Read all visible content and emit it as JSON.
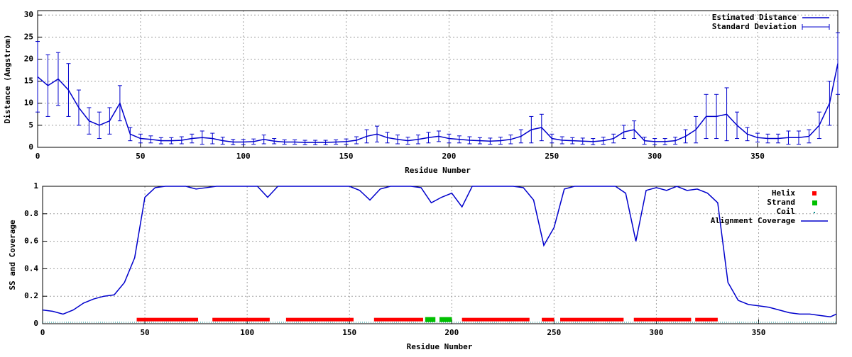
{
  "chart_data": [
    {
      "type": "errorline",
      "ylabel": "Distance (Angstrom)",
      "xlabel": "Residue Number",
      "xlim": [
        0,
        389
      ],
      "ylim": [
        0,
        31
      ],
      "xticks": [
        0,
        50,
        100,
        150,
        200,
        250,
        300,
        350
      ],
      "yticks": [
        0,
        5,
        10,
        15,
        20,
        25,
        30
      ],
      "grid": true,
      "legend": "top-right",
      "color": "#0000cc",
      "legend_labels": [
        "Estimated Distance",
        "Standard Deviation"
      ],
      "x": [
        0,
        5,
        10,
        15,
        20,
        25,
        30,
        35,
        40,
        45,
        50,
        55,
        60,
        65,
        70,
        75,
        80,
        85,
        90,
        95,
        100,
        105,
        110,
        115,
        120,
        125,
        130,
        135,
        140,
        145,
        150,
        155,
        160,
        165,
        170,
        175,
        180,
        185,
        190,
        195,
        200,
        205,
        210,
        215,
        220,
        225,
        230,
        235,
        240,
        245,
        250,
        255,
        260,
        265,
        270,
        275,
        280,
        285,
        290,
        295,
        300,
        305,
        310,
        315,
        320,
        325,
        330,
        335,
        340,
        345,
        350,
        355,
        360,
        365,
        370,
        375,
        380,
        385,
        389
      ],
      "values": [
        16,
        14,
        15.5,
        13,
        9,
        6,
        5,
        6,
        10,
        3,
        2,
        1.8,
        1.5,
        1.5,
        1.6,
        2,
        2.2,
        2,
        1.5,
        1.2,
        1.2,
        1.3,
        1.8,
        1.4,
        1.2,
        1.2,
        1.1,
        1.1,
        1.1,
        1.2,
        1.3,
        1.6,
        2.5,
        3,
        2.2,
        1.8,
        1.5,
        1.8,
        2.2,
        2.5,
        2,
        1.8,
        1.6,
        1.5,
        1.4,
        1.5,
        1.8,
        2.5,
        4,
        4.5,
        2,
        1.6,
        1.5,
        1.4,
        1.3,
        1.5,
        2,
        3.5,
        4,
        1.5,
        1.3,
        1.3,
        1.5,
        2.5,
        4,
        7,
        7,
        7.5,
        5,
        3,
        2.2,
        2,
        2,
        2.2,
        2.2,
        2.5,
        5,
        10,
        19
      ],
      "std": [
        8,
        7,
        6,
        6,
        4,
        3,
        3,
        3,
        4,
        1.5,
        1,
        0.8,
        0.7,
        0.7,
        0.8,
        1,
        1.5,
        1.2,
        0.8,
        0.6,
        0.6,
        0.6,
        1,
        0.6,
        0.5,
        0.5,
        0.5,
        0.5,
        0.5,
        0.5,
        0.6,
        0.8,
        1.5,
        1.8,
        1.2,
        1,
        0.8,
        1,
        1.2,
        1.2,
        1,
        0.8,
        0.8,
        0.7,
        0.7,
        0.8,
        1,
        1.5,
        3,
        3,
        1,
        0.8,
        0.7,
        0.7,
        0.7,
        0.8,
        1,
        1.5,
        2,
        0.8,
        0.7,
        0.7,
        0.8,
        1.5,
        3,
        5,
        5,
        6,
        3,
        1.5,
        1,
        1,
        1,
        1.5,
        1.5,
        1.5,
        3,
        5,
        7
      ]
    },
    {
      "type": "coverage",
      "ylabel": "SS and Coverage",
      "xlabel": "Residue Number",
      "xlim": [
        0,
        388
      ],
      "ylim": [
        0,
        1
      ],
      "xticks": [
        0,
        50,
        100,
        150,
        200,
        250,
        300,
        350
      ],
      "yticks": [
        0,
        {
          "value": 0.2,
          "label": "0.2"
        },
        {
          "value": 0.4,
          "label": "0.4"
        },
        {
          "value": 0.6,
          "label": "0.6"
        },
        {
          "value": 0.8,
          "label": "0.8"
        },
        1
      ],
      "grid": true,
      "legend": "top-right",
      "legend_labels": [
        "Helix",
        "Strand",
        "Coil",
        "Alignment Coverage"
      ],
      "colors": {
        "helix": "#ff0000",
        "strand": "#00c000",
        "coil": "#009090",
        "coverage": "#0000cc"
      },
      "ss_levels": {
        "helix": 0.03,
        "strand": 0.03,
        "coil": 0.01
      },
      "helix_ranges": [
        [
          46,
          76
        ],
        [
          83,
          111
        ],
        [
          119,
          152
        ],
        [
          162,
          186
        ],
        [
          205,
          238
        ],
        [
          244,
          250
        ],
        [
          253,
          284
        ],
        [
          289,
          317
        ],
        [
          319,
          330
        ]
      ],
      "strand_ranges": [
        [
          187,
          192
        ],
        [
          194,
          200
        ]
      ],
      "x": [
        0,
        5,
        10,
        15,
        20,
        25,
        30,
        35,
        40,
        45,
        50,
        55,
        60,
        65,
        70,
        75,
        80,
        85,
        90,
        95,
        100,
        105,
        110,
        115,
        120,
        125,
        130,
        135,
        140,
        145,
        150,
        155,
        160,
        165,
        170,
        175,
        180,
        185,
        190,
        195,
        200,
        205,
        210,
        215,
        220,
        225,
        230,
        235,
        240,
        245,
        250,
        255,
        260,
        265,
        270,
        275,
        280,
        285,
        290,
        295,
        300,
        305,
        310,
        315,
        320,
        325,
        330,
        335,
        340,
        345,
        350,
        355,
        360,
        365,
        370,
        375,
        380,
        385,
        388
      ],
      "values": [
        0.1,
        0.09,
        0.07,
        0.1,
        0.15,
        0.18,
        0.2,
        0.21,
        0.3,
        0.48,
        0.92,
        0.99,
        1,
        1,
        1,
        0.98,
        0.99,
        1,
        1,
        1,
        1,
        1,
        0.92,
        1,
        1,
        1,
        1,
        1,
        1,
        1,
        1,
        0.97,
        0.9,
        0.98,
        1,
        1,
        1,
        0.99,
        0.88,
        0.92,
        0.95,
        0.85,
        1,
        1,
        1,
        1,
        1,
        0.99,
        0.9,
        0.57,
        0.7,
        0.98,
        1,
        1,
        1,
        1,
        1,
        0.95,
        0.6,
        0.97,
        0.99,
        0.97,
        1,
        0.97,
        0.98,
        0.95,
        0.88,
        0.3,
        0.17,
        0.14,
        0.13,
        0.12,
        0.1,
        0.08,
        0.07,
        0.07,
        0.06,
        0.05,
        0.07
      ]
    }
  ]
}
